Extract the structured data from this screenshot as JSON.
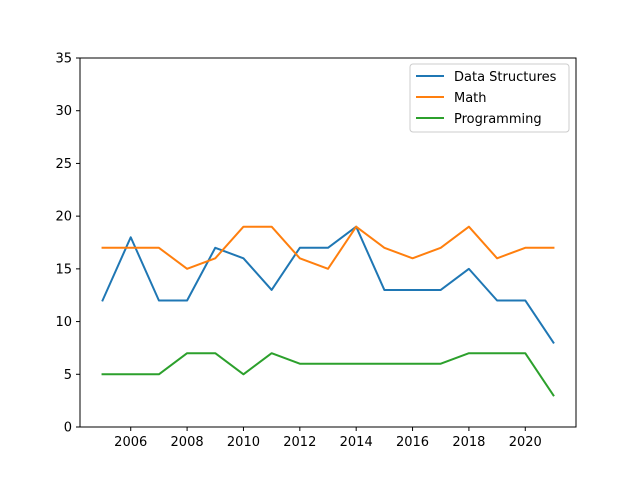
{
  "chart_data": {
    "type": "line",
    "title": "",
    "xlabel": "",
    "ylabel": "",
    "x": [
      2005,
      2006,
      2007,
      2008,
      2009,
      2010,
      2011,
      2012,
      2013,
      2014,
      2015,
      2016,
      2017,
      2018,
      2019,
      2020,
      2021
    ],
    "xlim": [
      2004.2,
      2021.8
    ],
    "ylim": [
      0,
      35
    ],
    "xticks": [
      "2006",
      "2008",
      "2010",
      "2012",
      "2014",
      "2016",
      "2018",
      "2020"
    ],
    "yticks": [
      "0",
      "5",
      "10",
      "15",
      "20",
      "25",
      "30",
      "35"
    ],
    "grid": false,
    "legend_position": "top-right",
    "series": [
      {
        "name": "Data Structures",
        "color": "#1f77b4",
        "values": [
          12,
          18,
          12,
          12,
          17,
          16,
          13,
          17,
          17,
          19,
          13,
          13,
          13,
          15,
          12,
          12,
          8
        ]
      },
      {
        "name": "Math",
        "color": "#ff7f0e",
        "values": [
          17,
          17,
          17,
          15,
          16,
          19,
          19,
          16,
          15,
          19,
          17,
          16,
          17,
          19,
          16,
          17,
          17
        ]
      },
      {
        "name": "Programming",
        "color": "#2ca02c",
        "values": [
          5,
          5,
          5,
          7,
          7,
          5,
          7,
          6,
          6,
          6,
          6,
          6,
          6,
          7,
          7,
          7,
          3
        ]
      }
    ]
  }
}
